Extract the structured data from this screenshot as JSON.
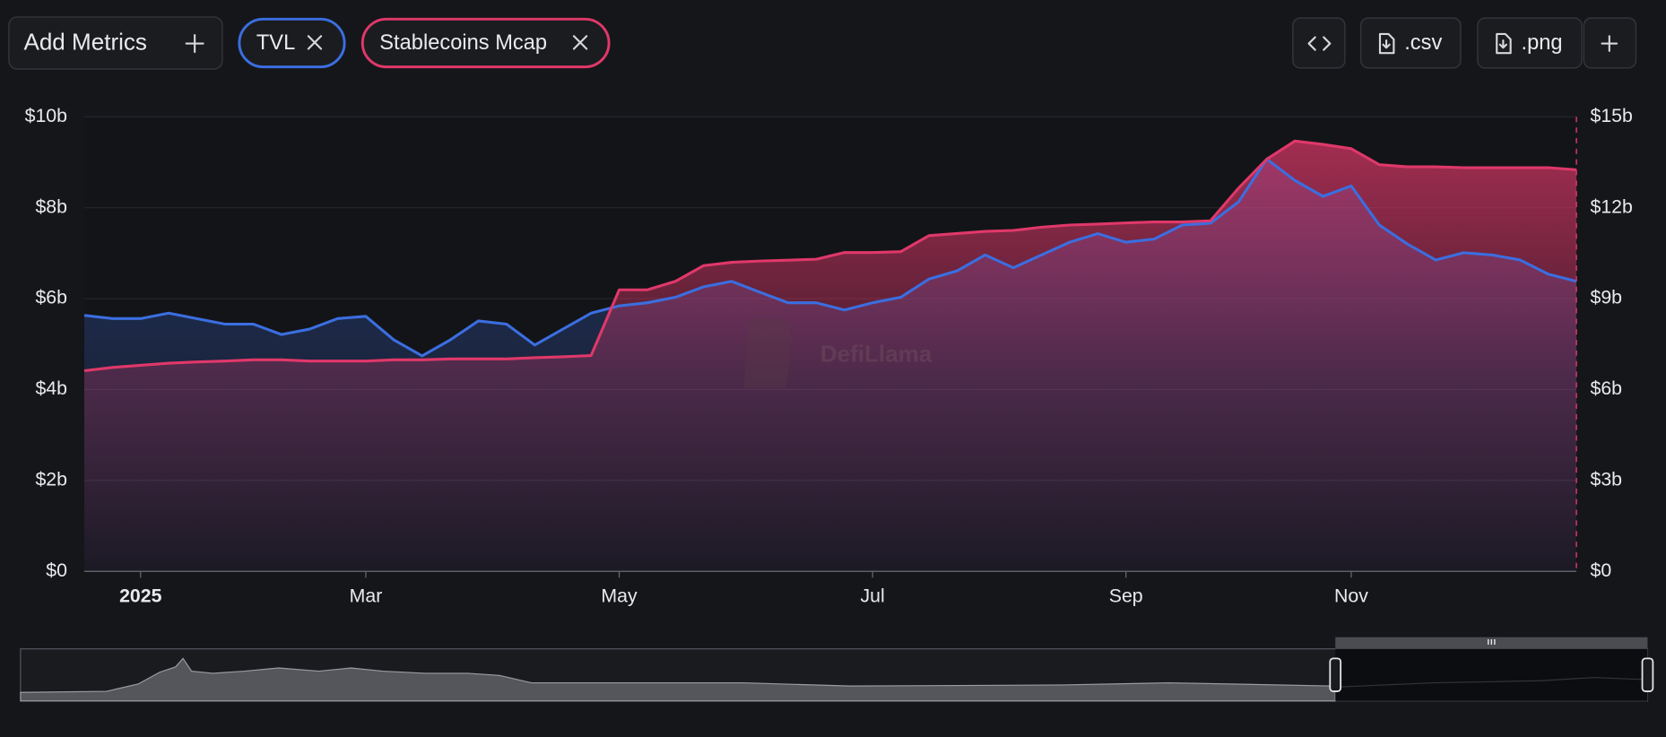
{
  "toolbar": {
    "add_metrics": "Add Metrics",
    "csv": ".csv",
    "png": ".png"
  },
  "watermark": "DefiLlama",
  "chart_data": {
    "type": "line",
    "area": true,
    "grid": true,
    "categories": [
      null,
      null,
      "2025",
      null,
      null,
      null,
      null,
      null,
      null,
      null,
      "Mar",
      null,
      null,
      null,
      null,
      null,
      null,
      null,
      null,
      "May",
      null,
      null,
      null,
      null,
      null,
      null,
      null,
      null,
      "Jul",
      null,
      null,
      null,
      null,
      null,
      null,
      null,
      null,
      "Sep",
      null,
      null,
      null,
      null,
      null,
      null,
      null,
      "Nov",
      null,
      null,
      null,
      null,
      null,
      null,
      null,
      null
    ],
    "series": [
      {
        "name": "TVL",
        "color": "#3b6ee0",
        "axis": "y",
        "values": [
          5.63,
          5.56,
          5.56,
          5.68,
          5.56,
          5.44,
          5.44,
          5.21,
          5.33,
          5.56,
          5.61,
          5.09,
          4.74,
          5.09,
          5.51,
          5.44,
          4.98,
          5.33,
          5.68,
          5.84,
          5.91,
          6.03,
          6.26,
          6.38,
          6.14,
          5.91,
          5.91,
          5.75,
          5.91,
          6.03,
          6.43,
          6.61,
          6.96,
          6.68,
          6.96,
          7.24,
          7.43,
          7.24,
          7.31,
          7.62,
          7.66,
          8.13,
          9.07,
          8.6,
          8.25,
          8.48,
          7.62,
          7.2,
          6.85,
          7.01,
          6.96,
          6.85,
          6.54,
          6.38
        ]
      },
      {
        "name": "Stablecoins Mcap",
        "color": "#e0386a",
        "axis": "y2",
        "values": [
          6.62,
          6.73,
          6.8,
          6.87,
          6.91,
          6.94,
          6.98,
          6.98,
          6.94,
          6.94,
          6.94,
          6.98,
          6.98,
          7.01,
          7.01,
          7.01,
          7.05,
          7.08,
          7.12,
          9.29,
          9.29,
          9.57,
          10.09,
          10.2,
          10.24,
          10.27,
          10.3,
          10.52,
          10.52,
          10.55,
          11.08,
          11.15,
          11.22,
          11.25,
          11.36,
          11.43,
          11.46,
          11.5,
          11.53,
          11.53,
          11.57,
          12.65,
          13.6,
          14.2,
          14.09,
          13.95,
          13.42,
          13.35,
          13.35,
          13.32,
          13.32,
          13.32,
          13.32,
          13.25
        ]
      }
    ],
    "ylim": [
      0,
      10
    ],
    "yticks": [
      {
        "value": 0,
        "label": "$0"
      },
      {
        "value": 2,
        "label": "$2b"
      },
      {
        "value": 4,
        "label": "$4b"
      },
      {
        "value": 6,
        "label": "$6b"
      },
      {
        "value": 8,
        "label": "$8b"
      },
      {
        "value": 10,
        "label": "$10b"
      }
    ],
    "y2lim": [
      0,
      15
    ],
    "y2ticks": [
      {
        "value": 0,
        "label": "$0"
      },
      {
        "value": 3,
        "label": "$3b"
      },
      {
        "value": 6,
        "label": "$6b"
      },
      {
        "value": 9,
        "label": "$9b"
      },
      {
        "value": 12,
        "label": "$12b"
      },
      {
        "value": 15,
        "label": "$15b"
      }
    ]
  }
}
